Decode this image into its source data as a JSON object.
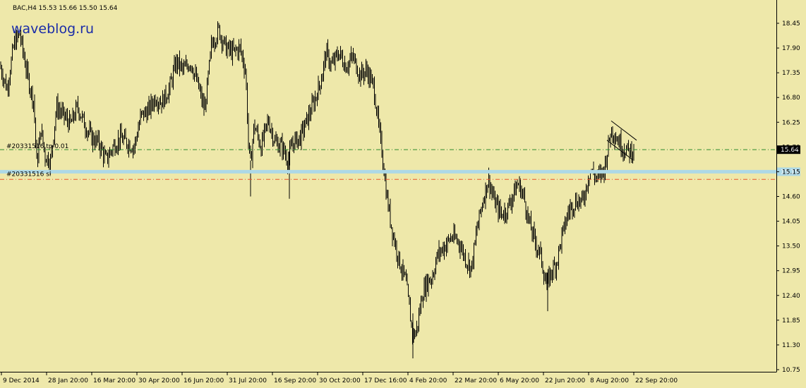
{
  "header": {
    "info": "BAC,H4  15.53 15.66 15.50 15.64",
    "logo": "waveblog.ru"
  },
  "colors": {
    "background": "#EEE8AA",
    "candles": "#000000",
    "tp_line": "#2E8B2E",
    "sl_line": "#E8552A",
    "price_line": "#ADD8E6",
    "price_tag_bg": "#000000",
    "level_tag_bg": "#ADD8E6"
  },
  "orders": {
    "tp_label": "#20331516 tp 0.01",
    "sl_label": "#20331516 sl"
  },
  "price_tags": {
    "current": "15.64",
    "level": "15.15"
  },
  "chart_data": {
    "type": "candlestick",
    "title": "BAC,H4",
    "ylim": [
      10.7,
      18.7
    ],
    "grid": false,
    "y_ticks": [
      "18.45",
      "17.90",
      "17.35",
      "16.80",
      "16.25",
      "15.70",
      "15.15",
      "14.60",
      "14.05",
      "13.50",
      "12.95",
      "12.40",
      "11.85",
      "11.30",
      "10.75"
    ],
    "y_tick_values": [
      18.45,
      17.9,
      17.35,
      16.8,
      16.25,
      15.7,
      15.15,
      14.6,
      14.05,
      13.5,
      12.95,
      12.4,
      11.85,
      11.3,
      10.75
    ],
    "x_ticks": [
      "9 Dec 2014",
      "28 Jan 20:00",
      "16 Mar 20:00",
      "30 Apr 20:00",
      "16 Jun 20:00",
      "31 Jul 20:00",
      "16 Sep 20:00",
      "30 Oct 20:00",
      "17 Dec 16:00",
      "4 Feb 20:00",
      "22 Mar 20:00",
      "6 May 20:00",
      "22 Jun 20:00",
      "8 Aug 20:00",
      "22 Sep 20:00"
    ],
    "horizontal_levels": [
      {
        "label": "#20331516 tp 0.01",
        "value": 15.64,
        "style": "dash-dot"
      },
      {
        "label": "",
        "value": 15.15,
        "style": "solid"
      },
      {
        "label": "#20331516 sl",
        "value": 14.98,
        "style": "dash-dot"
      }
    ],
    "price_path": [
      [
        0,
        17.5
      ],
      [
        10,
        17.0
      ],
      [
        20,
        18.0
      ],
      [
        28,
        18.2
      ],
      [
        40,
        17.2
      ],
      [
        48,
        16.7
      ],
      [
        52,
        15.3
      ],
      [
        58,
        16.1
      ],
      [
        64,
        15.5
      ],
      [
        72,
        15.4
      ],
      [
        80,
        16.6
      ],
      [
        90,
        16.4
      ],
      [
        100,
        16.2
      ],
      [
        110,
        16.6
      ],
      [
        120,
        16.2
      ],
      [
        130,
        15.9
      ],
      [
        140,
        15.8
      ],
      [
        150,
        15.4
      ],
      [
        160,
        15.7
      ],
      [
        170,
        15.9
      ],
      [
        180,
        15.8
      ],
      [
        190,
        15.7
      ],
      [
        200,
        16.4
      ],
      [
        210,
        16.5
      ],
      [
        220,
        16.8
      ],
      [
        230,
        16.7
      ],
      [
        240,
        17.0
      ],
      [
        250,
        17.6
      ],
      [
        260,
        17.4
      ],
      [
        270,
        17.6
      ],
      [
        280,
        17.1
      ],
      [
        290,
        16.5
      ],
      [
        300,
        18.0
      ],
      [
        310,
        18.3
      ],
      [
        320,
        17.9
      ],
      [
        330,
        17.8
      ],
      [
        340,
        17.9
      ],
      [
        348,
        17.4
      ],
      [
        352,
        15.8
      ],
      [
        355,
        15.3
      ],
      [
        360,
        16.2
      ],
      [
        370,
        15.7
      ],
      [
        380,
        16.3
      ],
      [
        390,
        15.8
      ],
      [
        400,
        15.7
      ],
      [
        408,
        15.4
      ],
      [
        415,
        15.8
      ],
      [
        425,
        15.9
      ],
      [
        435,
        16.3
      ],
      [
        445,
        16.7
      ],
      [
        455,
        17.2
      ],
      [
        462,
        17.8
      ],
      [
        470,
        17.5
      ],
      [
        480,
        17.8
      ],
      [
        490,
        17.5
      ],
      [
        500,
        17.7
      ],
      [
        510,
        17.3
      ],
      [
        520,
        17.4
      ],
      [
        530,
        17.0
      ],
      [
        536,
        16.2
      ],
      [
        542,
        15.5
      ],
      [
        548,
        14.6
      ],
      [
        555,
        13.9
      ],
      [
        565,
        13.2
      ],
      [
        575,
        12.7
      ],
      [
        585,
        11.5
      ],
      [
        590,
        11.6
      ],
      [
        598,
        12.4
      ],
      [
        605,
        12.7
      ],
      [
        612,
        12.8
      ],
      [
        620,
        13.3
      ],
      [
        630,
        13.5
      ],
      [
        640,
        13.7
      ],
      [
        650,
        13.6
      ],
      [
        660,
        13.2
      ],
      [
        668,
        13.0
      ],
      [
        676,
        13.9
      ],
      [
        684,
        14.5
      ],
      [
        692,
        15.0
      ],
      [
        700,
        14.5
      ],
      [
        710,
        14.2
      ],
      [
        718,
        14.3
      ],
      [
        726,
        14.6
      ],
      [
        734,
        14.9
      ],
      [
        742,
        14.6
      ],
      [
        750,
        14.0
      ],
      [
        758,
        13.6
      ],
      [
        766,
        13.3
      ],
      [
        774,
        12.6
      ],
      [
        780,
        12.9
      ],
      [
        788,
        13.1
      ],
      [
        796,
        13.7
      ],
      [
        806,
        14.3
      ],
      [
        816,
        14.5
      ],
      [
        826,
        14.5
      ],
      [
        836,
        15.2
      ],
      [
        846,
        15.0
      ],
      [
        856,
        15.2
      ],
      [
        866,
        16.1
      ],
      [
        874,
        15.9
      ],
      [
        882,
        15.7
      ],
      [
        890,
        15.6
      ],
      [
        898,
        15.64
      ]
    ]
  }
}
